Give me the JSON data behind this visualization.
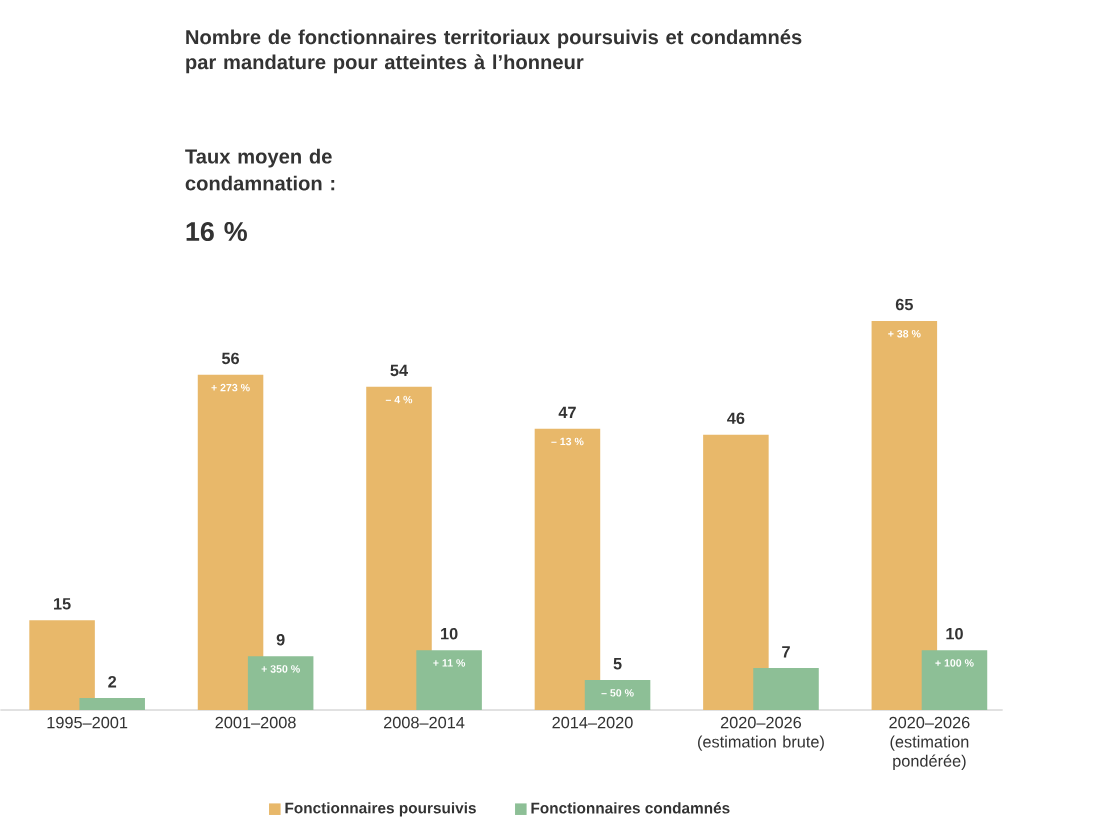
{
  "chart_data": {
    "type": "bar",
    "title": "Nombre de fonctionnaires territoriaux poursuivis et condamnés par mandature pour atteintes à l’honneur",
    "annotations": [
      "Taux moyen de condamnation :",
      "16 %",
      {
        "text": "+ 273 %",
        "x": "2001–2008",
        "y": 56
      },
      {
        "text": "– 4 %",
        "x": "2008–2014",
        "y": 54
      },
      {
        "text": "– 13 %",
        "x": "2014–2020",
        "y": 47
      },
      {
        "text": "+ 38 %",
        "x": "2020–2026 (estimation pondérée)",
        "y": 65
      },
      {
        "text": "+ 350 %",
        "x": "2001–2008",
        "y": 9
      },
      {
        "text": "+ 11 %",
        "x": "2008–2014",
        "y": 10
      },
      {
        "text": "– 50 %",
        "x": "2014–2020",
        "y": 5
      },
      {
        "text": "+ 100 %",
        "x": "2020–2026 (estimation pondérée)",
        "y": 10
      }
    ],
    "categories": [
      "1995–2001",
      "2001–2008",
      "2008–2014",
      "2014–2020",
      "2020–2026 (estimation brute)",
      "2020–2026 (estimation pondérée)"
    ],
    "series": [
      {
        "name": "Fonctionnaires poursuivis",
        "color": "#e8b86a",
        "values": [
          15,
          56,
          54,
          47,
          46,
          65
        ]
      },
      {
        "name": "Fonctionnaires condamnés",
        "color": "#8dbf96",
        "values": [
          2,
          9,
          10,
          5,
          7,
          10
        ]
      }
    ],
    "data_labels": true,
    "legend": "bottom",
    "tick_labels": "x"
  }
}
